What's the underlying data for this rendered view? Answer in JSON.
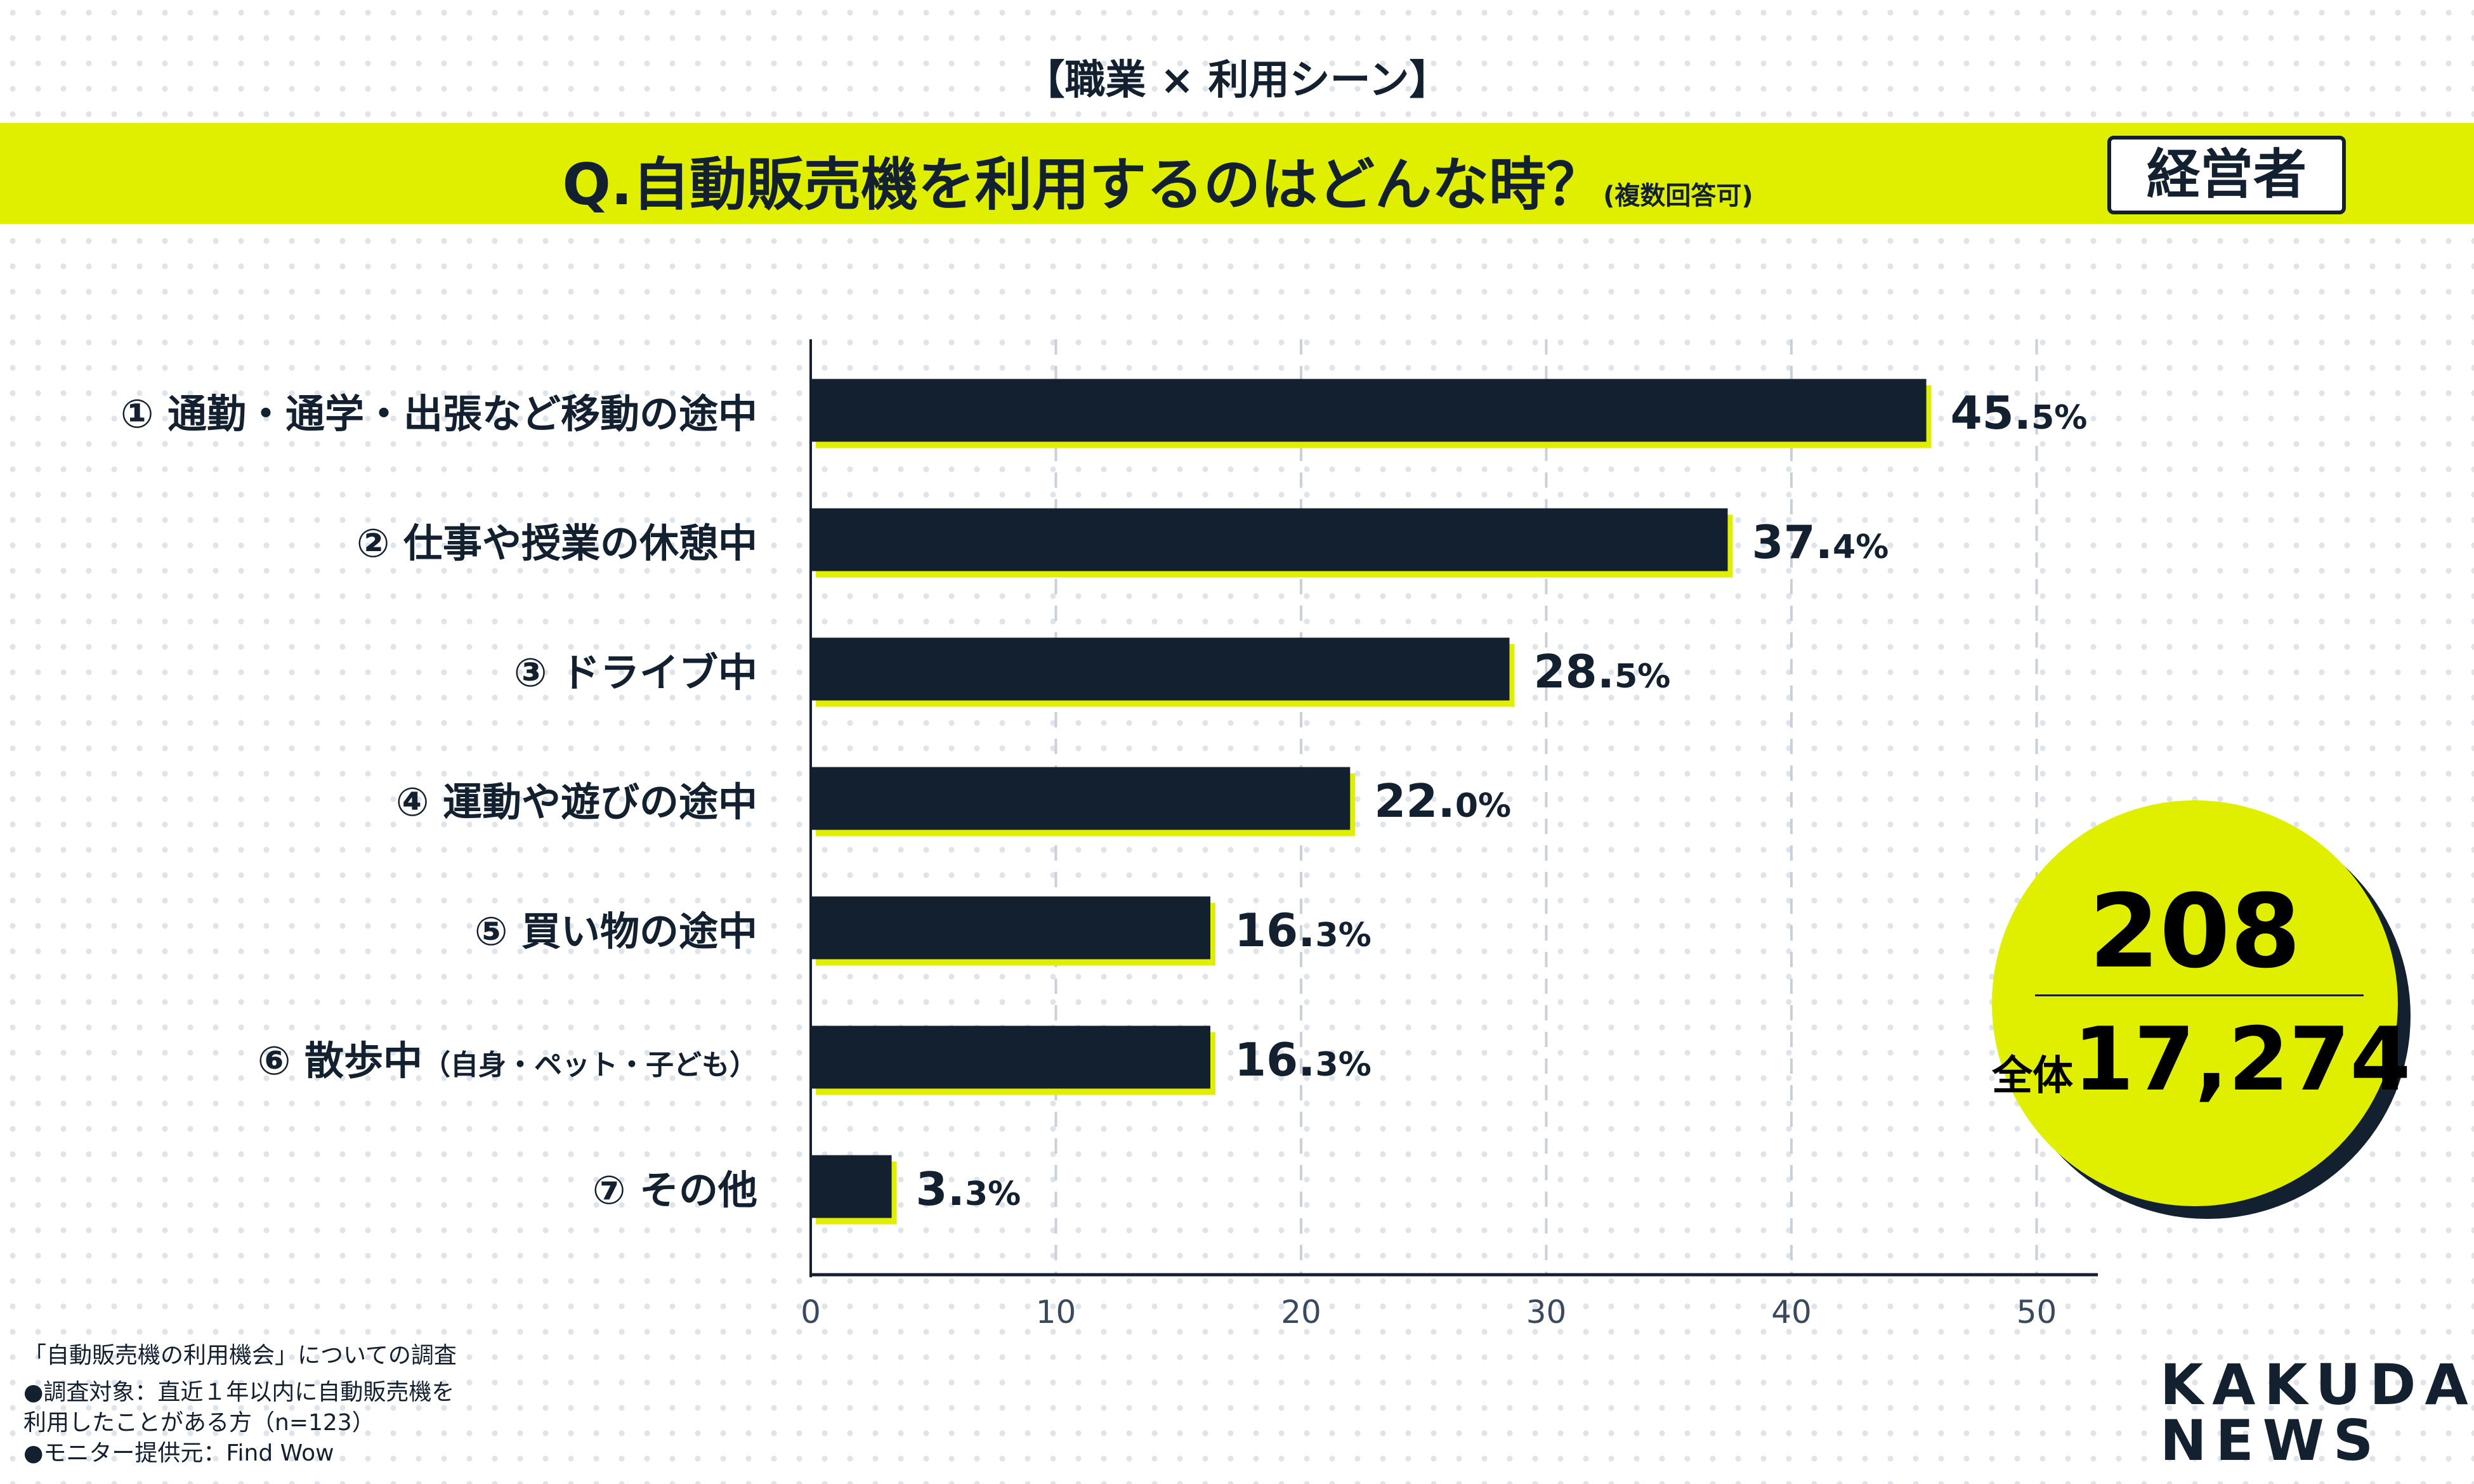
{
  "header": {
    "subtitle": "【職業 × 利用シーン】",
    "question": "Q.自動販売機を利用するのはどんな時？",
    "question_note": "(複数回答可)",
    "badge": "経営者"
  },
  "colors": {
    "accent": "#e0ef00",
    "bar": "#13202f"
  },
  "chart_data": {
    "type": "bar",
    "orientation": "horizontal",
    "categories": [
      {
        "num": "①",
        "label": "通勤・通学・出張など移動の途中",
        "sub": ""
      },
      {
        "num": "②",
        "label": "仕事や授業の休憩中",
        "sub": ""
      },
      {
        "num": "③",
        "label": "ドライブ中",
        "sub": ""
      },
      {
        "num": "④",
        "label": "運動や遊びの途中",
        "sub": ""
      },
      {
        "num": "⑤",
        "label": "買い物の途中",
        "sub": ""
      },
      {
        "num": "⑥",
        "label": "散歩中",
        "sub": "（自身・ペット・子ども）"
      },
      {
        "num": "⑦",
        "label": "その他",
        "sub": ""
      }
    ],
    "values": [
      45.5,
      37.4,
      28.5,
      22.0,
      16.3,
      16.3,
      3.3
    ],
    "value_int": [
      "45.",
      "37.",
      "28.",
      "22.",
      "16.",
      "16.",
      "3."
    ],
    "value_dec": [
      "5%",
      "4%",
      "5%",
      "0%",
      "3%",
      "3%",
      "3%"
    ],
    "xlim": [
      0,
      52
    ],
    "xticks": [
      "0",
      "10",
      "20",
      "30",
      "40",
      "50"
    ],
    "grid": true
  },
  "summary": {
    "count": "208",
    "total_label": "全体",
    "total": "17,274"
  },
  "footer": {
    "line1": "「自動販売機の利用機会」についての調査",
    "line2": "●調査対象：直近１年以内に自動販売機を",
    "line3": "利用したことがある方（n=123）",
    "line4": "●モニター提供元：Find Wow"
  },
  "logo": {
    "line1": "KAKUDAI",
    "line2": "NEWS"
  }
}
